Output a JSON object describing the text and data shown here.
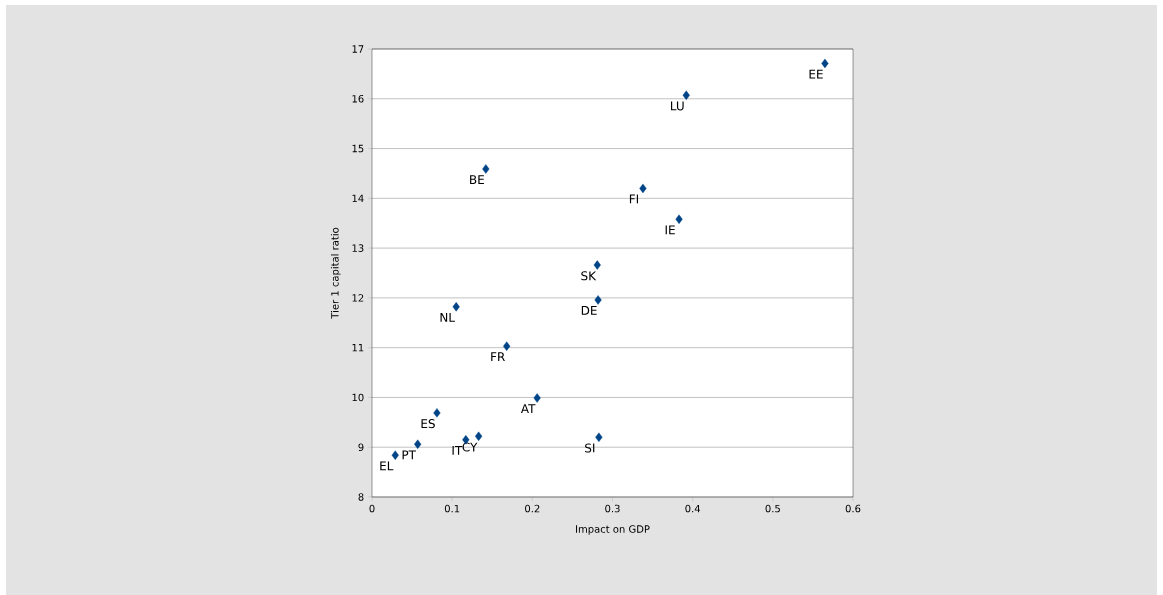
{
  "chart_data": {
    "type": "scatter",
    "xlabel": "Impact on GDP",
    "ylabel": "Tier 1 capital ratio",
    "x": [
      0.029,
      0.057,
      0.117,
      0.133,
      0.081,
      0.206,
      0.283,
      0.168,
      0.105,
      0.282,
      0.281,
      0.383,
      0.338,
      0.142,
      0.392,
      0.565
    ],
    "values": [
      8.84,
      9.06,
      9.15,
      9.22,
      9.69,
      9.99,
      9.2,
      11.03,
      11.82,
      11.96,
      12.66,
      13.58,
      14.2,
      14.59,
      16.07,
      16.71
    ],
    "color": "#004488",
    "marker": "diamond",
    "grid": "y",
    "xlim": [
      0,
      0.6
    ],
    "xticks": [
      0,
      0.1,
      0.2,
      0.3,
      0.4,
      0.5,
      0.6
    ],
    "ylim": [
      8,
      17
    ],
    "yticks": [
      8,
      9,
      10,
      11,
      12,
      13,
      14,
      15,
      16,
      17
    ],
    "annotations": [
      {
        "text": "EL",
        "x": 0.029,
        "y": 8.84
      },
      {
        "text": "PT",
        "x": 0.057,
        "y": 9.06
      },
      {
        "text": "IT",
        "x": 0.117,
        "y": 9.15
      },
      {
        "text": "CY",
        "x": 0.133,
        "y": 9.22
      },
      {
        "text": "ES",
        "x": 0.081,
        "y": 9.69
      },
      {
        "text": "AT",
        "x": 0.206,
        "y": 9.99
      },
      {
        "text": "SI",
        "x": 0.283,
        "y": 9.2
      },
      {
        "text": "FR",
        "x": 0.168,
        "y": 11.03
      },
      {
        "text": "NL",
        "x": 0.105,
        "y": 11.82
      },
      {
        "text": "DE",
        "x": 0.282,
        "y": 11.96
      },
      {
        "text": "SK",
        "x": 0.281,
        "y": 12.66
      },
      {
        "text": "IE",
        "x": 0.383,
        "y": 13.58
      },
      {
        "text": "FI",
        "x": 0.338,
        "y": 14.2
      },
      {
        "text": "BE",
        "x": 0.142,
        "y": 14.59
      },
      {
        "text": "LU",
        "x": 0.392,
        "y": 16.07
      },
      {
        "text": "EE",
        "x": 0.565,
        "y": 16.71
      }
    ]
  }
}
